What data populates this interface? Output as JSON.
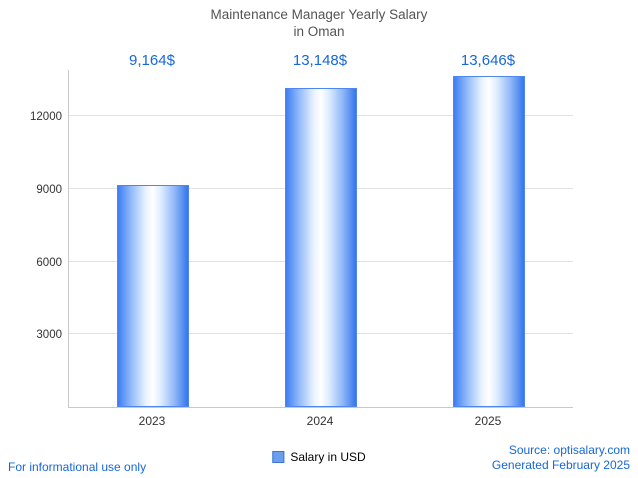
{
  "title": {
    "line1": "Maintenance Manager Yearly Salary",
    "line2": "in Oman"
  },
  "chart_data": {
    "type": "bar",
    "title": "Maintenance Manager Yearly Salary in Oman",
    "categories": [
      "2023",
      "2024",
      "2025"
    ],
    "values": [
      9164,
      13148,
      13646
    ],
    "value_labels": [
      "9,164$",
      "13,148$",
      "13,646$"
    ],
    "series_name": "Salary in USD",
    "xlabel": "",
    "ylabel": "",
    "ylim": [
      0,
      13900
    ],
    "yticks": [
      3000,
      6000,
      9000,
      12000
    ],
    "grid": "horizontal",
    "legend_position": "bottom-center"
  },
  "legend": {
    "label": "Salary in USD"
  },
  "footer": {
    "left": "For informational use only",
    "source": "Source: optisalary.com",
    "generated": "Generated February 2025"
  },
  "colors": {
    "accent_blue": "#1667d9",
    "bar_edge": "#3d7ef2",
    "legend_swatch": "#6d9eeb",
    "axis": "#c9c9c9",
    "title_text": "#545454"
  }
}
